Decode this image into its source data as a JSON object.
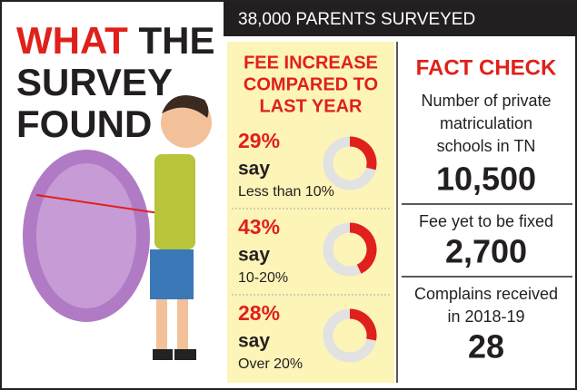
{
  "title": {
    "word_red": "WHAT",
    "word_black": "THE",
    "line2": "SURVEY",
    "line3": "FOUND"
  },
  "banner": "38,000 PARENTS SURVEYED",
  "fee": {
    "heading_lines": [
      "FEE INCREASE",
      "COMPARED TO",
      "LAST YEAR"
    ],
    "items": [
      {
        "value": 29,
        "value_label": "29%",
        "say": "say",
        "label": "Less than 10%"
      },
      {
        "value": 43,
        "value_label": "43%",
        "say": "say",
        "label": "10-20%"
      },
      {
        "value": 28,
        "value_label": "28%",
        "say": "say",
        "label": "Over 20%"
      }
    ]
  },
  "fact_check": {
    "heading": "FACT CHECK",
    "facts": [
      {
        "label_lines": [
          "Number of private",
          "matriculation",
          "schools in TN"
        ],
        "value": "10,500"
      },
      {
        "label_lines": [
          "Fee yet to be fixed"
        ],
        "value": "2,700"
      },
      {
        "label_lines": [
          "Complains received",
          "in 2018-19"
        ],
        "value": "28"
      }
    ]
  }
}
